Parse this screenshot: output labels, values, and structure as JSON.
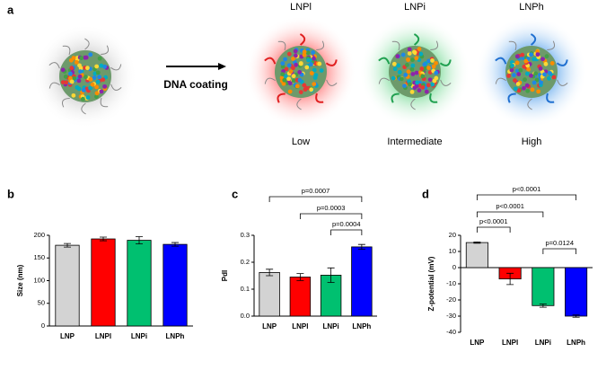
{
  "panel_a": {
    "label": "a",
    "particles": [
      "LNPl",
      "LNPi",
      "LNPh"
    ],
    "arrow_label": "DNA coating",
    "levels": [
      "Low",
      "Intermediate",
      "High"
    ]
  },
  "chart_data": [
    {
      "type": "bar",
      "label": "b",
      "y_label": "Size (nm)",
      "categories": [
        "LNP",
        "LNPl",
        "LNPi",
        "LNPh"
      ],
      "values": [
        178,
        192,
        189,
        180
      ],
      "errors": [
        4,
        4,
        8,
        4
      ],
      "colors": [
        "#d3d3d3",
        "#ff0000",
        "#00c070",
        "#0000ff"
      ],
      "ylim": [
        0,
        200
      ],
      "yticks": [
        0,
        50,
        100,
        150,
        200
      ]
    },
    {
      "type": "bar",
      "label": "c",
      "y_label": "PdI",
      "categories": [
        "LNP",
        "LNPl",
        "LNPi",
        "LNPh"
      ],
      "values": [
        0.162,
        0.145,
        0.152,
        0.257
      ],
      "errors": [
        0.012,
        0.013,
        0.027,
        0.009
      ],
      "colors": [
        "#d3d3d3",
        "#ff0000",
        "#00c070",
        "#0000ff"
      ],
      "ylim": [
        0,
        0.3
      ],
      "yticks": [
        {
          "value": 0,
          "label": "0.0"
        },
        0.1,
        0.2,
        0.3
      ],
      "brackets": [
        {
          "between": [
            "LNP",
            "LNPh"
          ],
          "label": "p=0.0007"
        },
        {
          "between": [
            "LNPl",
            "LNPh"
          ],
          "label": "p=0.0003"
        },
        {
          "between": [
            "LNPi",
            "LNPh"
          ],
          "label": "p=0.0004"
        }
      ]
    },
    {
      "type": "bar",
      "label": "d",
      "y_label": "Z-potential (mV)",
      "categories": [
        "LNP",
        "LNPl",
        "LNPi",
        "LNPh"
      ],
      "values": [
        15.5,
        -7,
        -23.5,
        -30
      ],
      "errors": [
        0.4,
        3.5,
        1,
        0.7
      ],
      "colors": [
        "#d3d3d3",
        "#ff0000",
        "#00c070",
        "#0000ff"
      ],
      "ylim": [
        -40,
        20
      ],
      "yticks": [
        -40,
        -30,
        -20,
        -10,
        0,
        10,
        20
      ],
      "brackets": [
        {
          "between": [
            "LNP",
            "LNPh"
          ],
          "label": "p<0.0001"
        },
        {
          "between": [
            "LNP",
            "LNPi"
          ],
          "label": "p<0.0001"
        },
        {
          "between": [
            "LNP",
            "LNPl"
          ],
          "label": "p<0.0001"
        },
        {
          "between": [
            "LNPi",
            "LNPh"
          ],
          "label": "p=0.0124"
        }
      ]
    }
  ]
}
